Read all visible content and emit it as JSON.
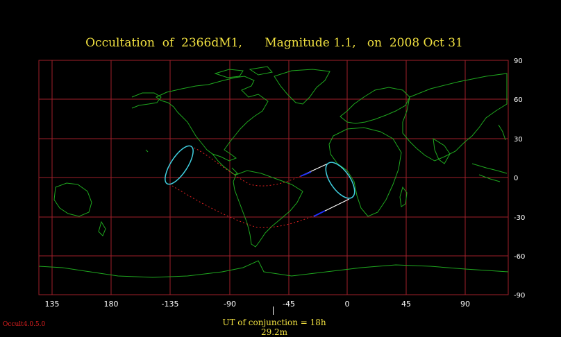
{
  "title": {
    "object": "Occultation  of  2366dM1,",
    "magnitude": "Magnitude 1.1,",
    "date": "on  2008 Oct 31"
  },
  "longitude_ticks": [
    "135",
    "180",
    "-135",
    "-90",
    "-45",
    "0",
    "45",
    "90"
  ],
  "latitude_ticks": [
    "90",
    "60",
    "30",
    "0",
    "-30",
    "-60",
    "-90"
  ],
  "conjunction_text": "UT of conjunction = 18h 29.2m",
  "version": "Occult4.0.5.0",
  "colors": {
    "title": "#f0e040",
    "grid": "#a0202a",
    "coastline": "#1fa81f",
    "ellipse": "#40d0e0",
    "path_dotted": "#e02020",
    "tangent": "#ffffff",
    "tangent_tip": "#2030ff",
    "version": "#e02020"
  }
}
